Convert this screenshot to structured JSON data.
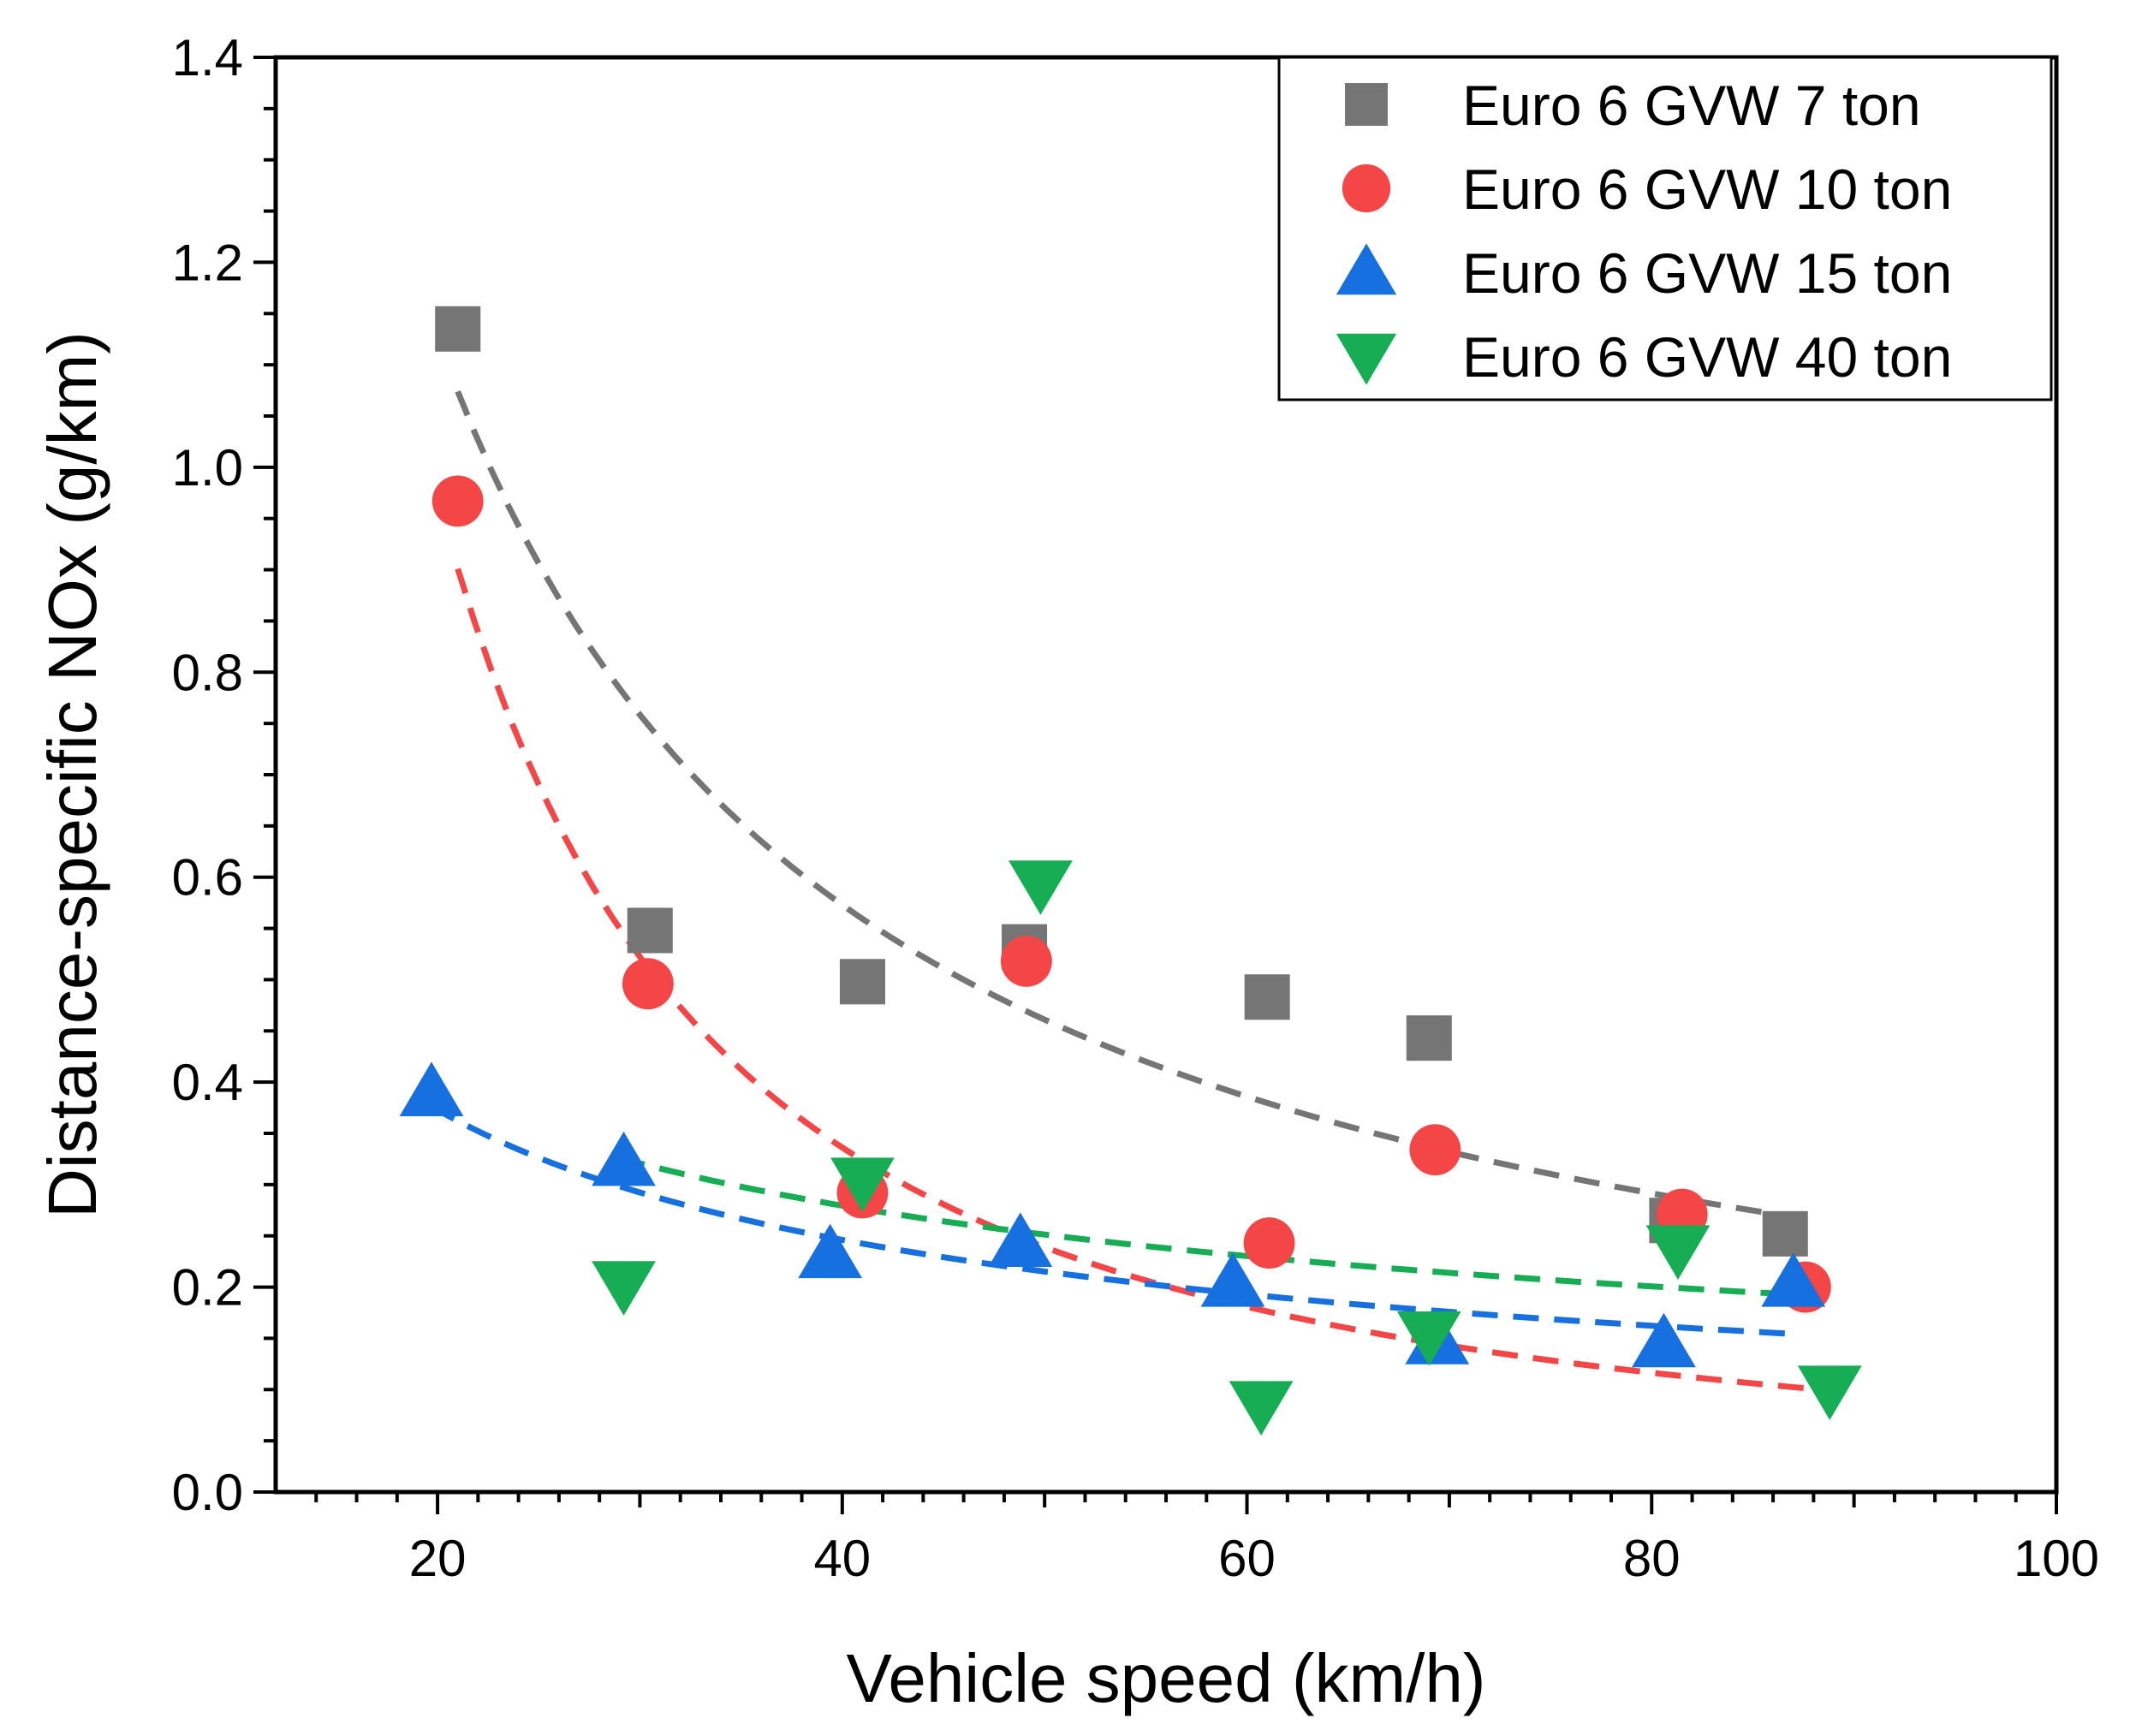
{
  "chart_data": {
    "type": "scatter",
    "title": "",
    "xlabel": "Vehicle speed (km/h)",
    "ylabel": "Distance-specific NOx (g/km)",
    "xlim": [
      12,
      100
    ],
    "ylim": [
      0.0,
      1.4
    ],
    "x_ticks": [
      20,
      40,
      60,
      80,
      100
    ],
    "x_tick_labels": [
      "20",
      "40",
      "60",
      "80",
      "100"
    ],
    "y_ticks": [
      0.0,
      0.2,
      0.4,
      0.6,
      0.8,
      1.0,
      1.2,
      1.4
    ],
    "y_tick_labels": [
      "0.0",
      "0.2",
      "0.4",
      "0.6",
      "0.8",
      "1.0",
      "1.2",
      "1.4"
    ],
    "grid": false,
    "legend_position": "top-right",
    "series": [
      {
        "name": "Euro 6 GVW 7 ton",
        "marker": "square",
        "color": "#757575",
        "x": [
          21,
          30.5,
          41,
          49,
          61,
          69,
          81,
          86.6
        ],
        "y": [
          1.135,
          0.548,
          0.498,
          0.532,
          0.483,
          0.443,
          0.265,
          0.252
        ],
        "fit": {
          "a": 20.9,
          "b": -0.975,
          "x_range": [
            21,
            87
          ]
        }
      },
      {
        "name": "Euro 6 GVW 10 ton",
        "marker": "circle",
        "color": "#f44646",
        "x": [
          21,
          30.4,
          41,
          49.1,
          61.1,
          69.3,
          81.5,
          87.6
        ],
        "y": [
          0.967,
          0.496,
          0.292,
          0.518,
          0.243,
          0.334,
          0.271,
          0.2
        ],
        "fit": {
          "a": 95.0,
          "b": -1.53,
          "x_range": [
            21,
            88
          ]
        }
      },
      {
        "name": "Euro 6 GVW 15 ton",
        "marker": "triangle-up",
        "color": "#1770e0",
        "x": [
          19.7,
          29.2,
          39.4,
          48.8,
          59.3,
          69.4,
          80.6,
          87
        ],
        "y": [
          0.39,
          0.322,
          0.232,
          0.243,
          0.204,
          0.148,
          0.145,
          0.204
        ],
        "fit": {
          "a": 2.25,
          "b": -0.6,
          "x_range": [
            19.7,
            87
          ]
        }
      },
      {
        "name": "Euro 6 GVW 40 ton",
        "marker": "triangle-down",
        "color": "#16ad55",
        "x": [
          29.2,
          41,
          49.8,
          60.7,
          69,
          81.3,
          88.8
        ],
        "y": [
          0.202,
          0.303,
          0.593,
          0.085,
          0.153,
          0.237,
          0.1
        ],
        "fit": {
          "a": 1.63,
          "b": -0.478,
          "x_range": [
            29,
            89
          ]
        }
      }
    ]
  }
}
